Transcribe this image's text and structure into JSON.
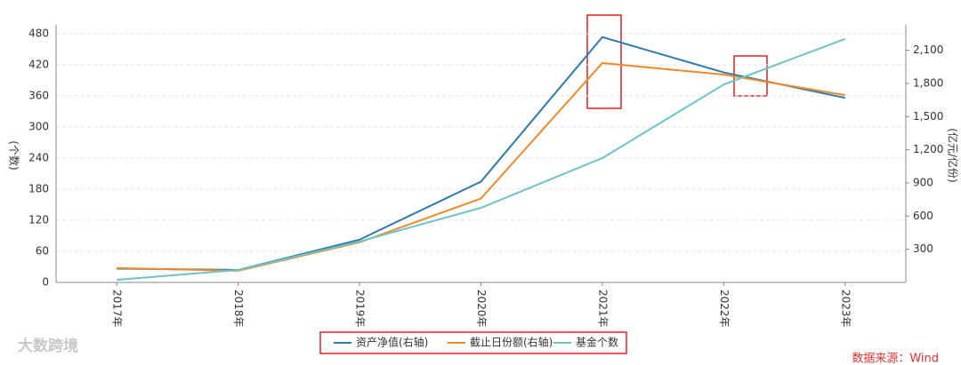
{
  "chart_data": {
    "type": "line",
    "categories": [
      "2017年",
      "2018年",
      "2019年",
      "2020年",
      "2021年",
      "2022年",
      "2023年"
    ],
    "ylabel": "(个数)",
    "y2label": "(亿元/亿份)",
    "ylim": [
      0,
      480
    ],
    "yticks": [
      0,
      60,
      120,
      180,
      240,
      300,
      360,
      420,
      480
    ],
    "y2lim": [
      0,
      2250
    ],
    "y2ticks": [
      300,
      600,
      900,
      {
        "value": 1200,
        "label": "1,200"
      },
      {
        "value": 1500,
        "label": "1,500"
      },
      {
        "value": 1800,
        "label": "1,800"
      },
      {
        "value": 2100,
        "label": "2,100"
      }
    ],
    "grid": true,
    "series": [
      {
        "name": "资产净值(右轴)",
        "color": "#2e7bab",
        "axis": "y2",
        "values": [
          125,
          113,
          387,
          912,
          2220,
          1900,
          1670
        ]
      },
      {
        "name": "截止日份额(右轴)",
        "color": "#f0892a",
        "axis": "y2",
        "values": [
          130,
          105,
          363,
          759,
          1985,
          1880,
          1695
        ]
      },
      {
        "name": "基金个数",
        "color": "#6cc3c8",
        "values": [
          5,
          24,
          79,
          144,
          240,
          382,
          470
        ]
      }
    ],
    "watermark": "大数跨境",
    "source": "数据来源：Wind"
  }
}
